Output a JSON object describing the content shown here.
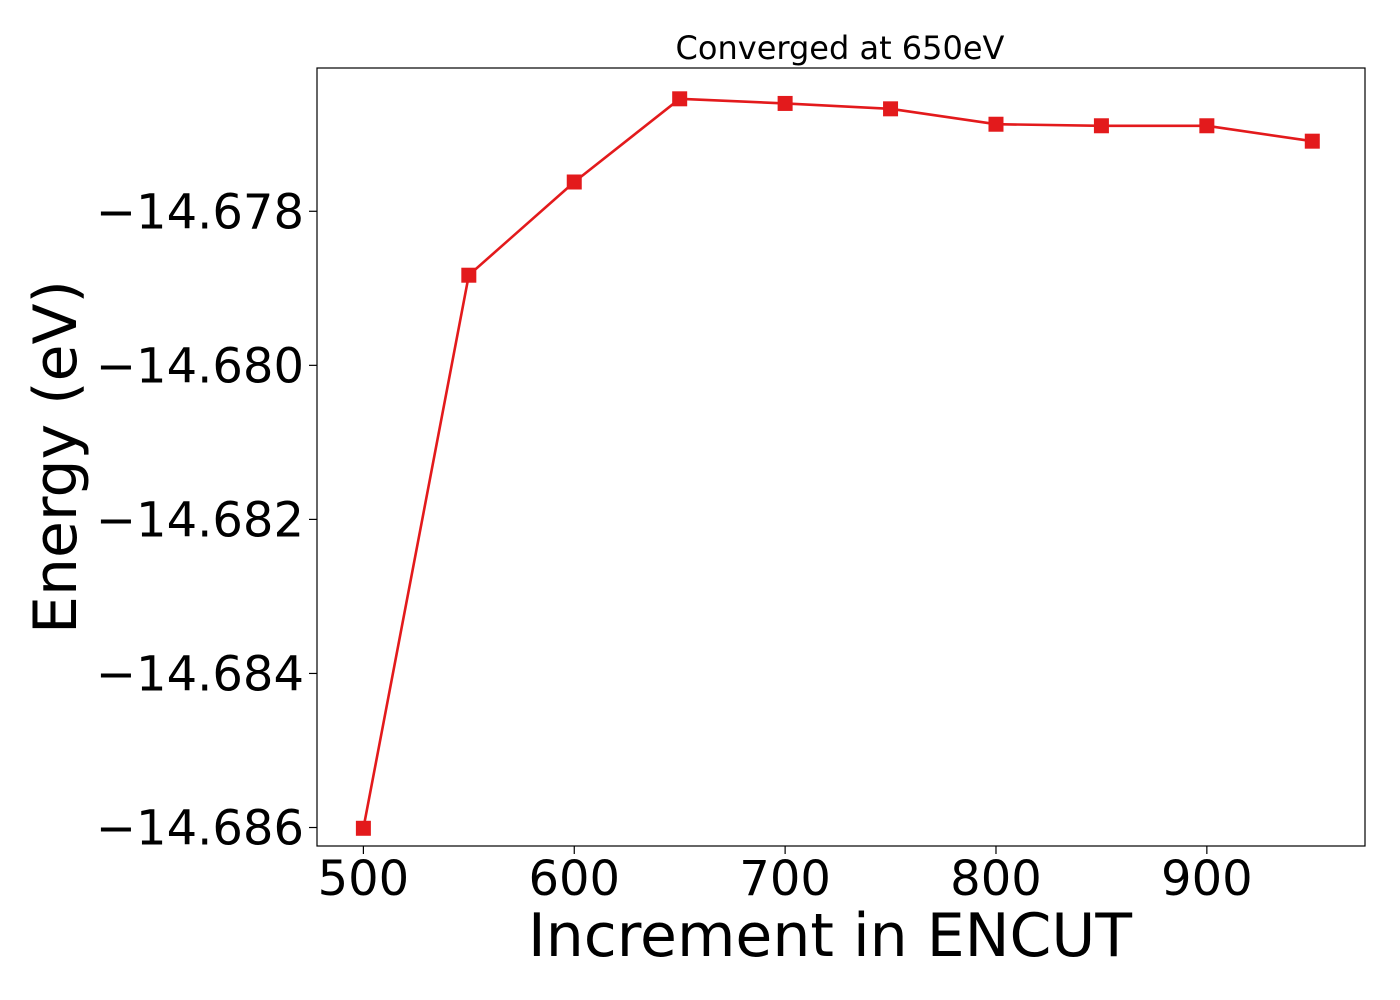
{
  "chart_data": {
    "type": "line",
    "title": "Converged at 650eV",
    "xlabel": "Increment in ENCUT",
    "ylabel": "Energy (eV)",
    "xlim": [
      478,
      975
    ],
    "ylim": [
      -14.68624,
      -14.67614
    ],
    "x_ticks": [
      500,
      600,
      700,
      800,
      900
    ],
    "x_tick_labels": [
      "500",
      "600",
      "700",
      "800",
      "900"
    ],
    "y_ticks": [
      -14.678,
      -14.68,
      -14.682,
      -14.684,
      -14.686
    ],
    "y_tick_labels": [
      "−14.678",
      "−14.680",
      "−14.682",
      "−14.684",
      "−14.686"
    ],
    "grid": false,
    "series": [
      {
        "color": "#e31a1c",
        "marker": "square",
        "x": [
          500,
          550,
          600,
          650,
          700,
          750,
          800,
          850,
          900,
          950
        ],
        "y": [
          -14.68601,
          -14.67883,
          -14.67762,
          -14.67654,
          -14.6766,
          -14.67667,
          -14.67687,
          -14.67689,
          -14.67689,
          -14.67709
        ]
      }
    ]
  }
}
